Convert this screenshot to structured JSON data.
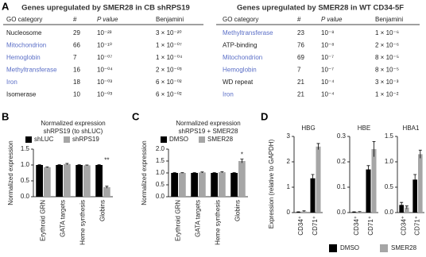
{
  "tables": [
    {
      "label": "A",
      "title": "Genes upregulated by SMER28 in CB shRPS19",
      "columns": [
        "GO category",
        "#",
        "P value",
        "Benjamini"
      ],
      "rows": [
        {
          "cells": [
            "Nucleosome",
            "29",
            "10⁻²³",
            "3 × 10⁻²⁰"
          ],
          "highlight": false
        },
        {
          "cells": [
            "Mitochondrion",
            "66",
            "10⁻¹⁰",
            "1 × 10⁻⁰⁷"
          ],
          "highlight": true
        },
        {
          "cells": [
            "Hemoglobin",
            "7",
            "10⁻⁰⁷",
            "1 × 10⁻⁰⁴"
          ],
          "highlight": true
        },
        {
          "cells": [
            "Methyltransferase",
            "16",
            "10⁻⁰⁴",
            "2 × 10⁻⁰³"
          ],
          "highlight": true
        },
        {
          "cells": [
            "Iron",
            "18",
            "10⁻⁰³",
            "6 × 10⁻⁰²"
          ],
          "highlight": true
        },
        {
          "cells": [
            "Isomerase",
            "10",
            "10⁻⁰³",
            "6 × 10⁻⁰²"
          ],
          "highlight": false
        }
      ]
    },
    {
      "title": "Genes upregulated by SMER28 in WT CD34-5F",
      "columns": [
        "GO category",
        "#",
        "P value",
        "Benjamini"
      ],
      "rows": [
        {
          "cells": [
            "Methyltransferase",
            "23",
            "10⁻⁸",
            "1 × 10⁻⁶"
          ],
          "highlight": true
        },
        {
          "cells": [
            "ATP-binding",
            "76",
            "10⁻⁸",
            "2 × 10⁻⁶"
          ],
          "highlight": false
        },
        {
          "cells": [
            "Mitochondrion",
            "69",
            "10⁻⁷",
            "8 × 10⁻⁵"
          ],
          "highlight": true
        },
        {
          "cells": [
            "Hemoglobin",
            "7",
            "10⁻⁷",
            "8 × 10⁻⁵"
          ],
          "highlight": true
        },
        {
          "cells": [
            "WD repeat",
            "21",
            "10⁻⁴",
            "3 × 10⁻³"
          ],
          "highlight": false
        },
        {
          "cells": [
            "Iron",
            "21",
            "10⁻⁴",
            "1 × 10⁻²"
          ],
          "highlight": true
        }
      ]
    }
  ],
  "chart_data": [
    {
      "type": "bar",
      "label": "B",
      "title": [
        "Normalized expression",
        "shRPS19 (to shLUC)"
      ],
      "ylabel": "Normalized expression",
      "categories": [
        "Erythroid GRN",
        "GATA targets",
        "Heme synthesis",
        "Globins"
      ],
      "series": [
        {
          "name": "shLUC",
          "color": "#000000",
          "values": [
            1,
            1,
            1,
            1
          ],
          "errors": [
            0.01,
            0.01,
            0.01,
            0.01
          ]
        },
        {
          "name": "shRPS19",
          "color": "#a6a6a6",
          "values": [
            0.93,
            1.03,
            0.99,
            0.3
          ],
          "errors": [
            0.01,
            0.02,
            0.01,
            0.03
          ]
        }
      ],
      "annotations": [
        null,
        null,
        null,
        "**"
      ],
      "ylim": [
        0,
        1.5
      ],
      "yticks": [
        {
          "value": 0,
          "label": "0.0"
        },
        {
          "value": 0.5,
          "label": "0.5"
        },
        {
          "value": 1,
          "label": "1.0"
        },
        {
          "value": 1.5,
          "label": "1.5"
        }
      ],
      "legend": "top"
    },
    {
      "type": "bar",
      "label": "C",
      "title": [
        "Normalized expression",
        "shRPS19 + SMER28"
      ],
      "ylabel": "Normalized expression",
      "categories": [
        "Erythroid GRN",
        "GATA targets",
        "Heme synthesis",
        "Globins"
      ],
      "series": [
        {
          "name": "DMSO",
          "color": "#000000",
          "values": [
            1,
            1,
            1,
            1
          ],
          "errors": [
            0.01,
            0.01,
            0.01,
            0.01
          ]
        },
        {
          "name": "SMER28",
          "color": "#a6a6a6",
          "values": [
            1.0,
            1.02,
            1.03,
            1.5
          ],
          "errors": [
            0.01,
            0.02,
            0.02,
            0.08
          ]
        }
      ],
      "annotations": [
        null,
        null,
        null,
        "*"
      ],
      "ylim": [
        0,
        2
      ],
      "yticks": [
        {
          "value": 0,
          "label": "0.0"
        },
        {
          "value": 0.5,
          "label": "0.5"
        },
        {
          "value": 1,
          "label": "1.0"
        },
        {
          "value": 1.5,
          "label": "1.5"
        },
        {
          "value": 2,
          "label": "2.0"
        }
      ],
      "legend": "top"
    },
    {
      "type": "bar",
      "label": "D",
      "title": [
        "HBG"
      ],
      "ylabel": "Expression (relative to GAPDH)",
      "categories": [
        "CD34⁺",
        "CD71⁺"
      ],
      "series": [
        {
          "name": "DMSO",
          "color": "#000000",
          "values": [
            0.02,
            1.35
          ],
          "errors": [
            0.01,
            0.15
          ]
        },
        {
          "name": "SMER28",
          "color": "#a6a6a6",
          "values": [
            0.05,
            2.6
          ],
          "errors": [
            0.02,
            0.12
          ]
        }
      ],
      "ylim": [
        0,
        3
      ],
      "yticks": [
        0,
        1,
        2,
        3
      ],
      "legend": "bottom"
    },
    {
      "type": "bar",
      "title": [
        "HBE"
      ],
      "categories": [
        "CD34⁺",
        "CD71⁺"
      ],
      "series": [
        {
          "name": "DMSO",
          "color": "#000000",
          "values": [
            0.002,
            0.17
          ],
          "errors": [
            0.001,
            0.015
          ]
        },
        {
          "name": "SMER28",
          "color": "#a6a6a6",
          "values": [
            0.003,
            0.25
          ],
          "errors": [
            0.001,
            0.03
          ]
        }
      ],
      "ylim": [
        0,
        0.3
      ],
      "yticks": [
        {
          "value": 0,
          "label": "0.0"
        },
        0.1,
        0.2,
        0.3
      ]
    },
    {
      "type": "bar",
      "title": [
        "HBA1"
      ],
      "categories": [
        "CD34⁺",
        "CD71⁺"
      ],
      "series": [
        {
          "name": "DMSO",
          "color": "#000000",
          "values": [
            0.15,
            0.65
          ],
          "errors": [
            0.05,
            0.1
          ]
        },
        {
          "name": "SMER28",
          "color": "#a6a6a6",
          "values": [
            0.1,
            1.15
          ],
          "errors": [
            0.03,
            0.08
          ]
        }
      ],
      "ylim": [
        0,
        1.5
      ],
      "yticks": [
        {
          "value": 0,
          "label": "0.0"
        },
        0.5,
        {
          "value": 1,
          "label": "1.0"
        },
        1.5
      ]
    }
  ]
}
